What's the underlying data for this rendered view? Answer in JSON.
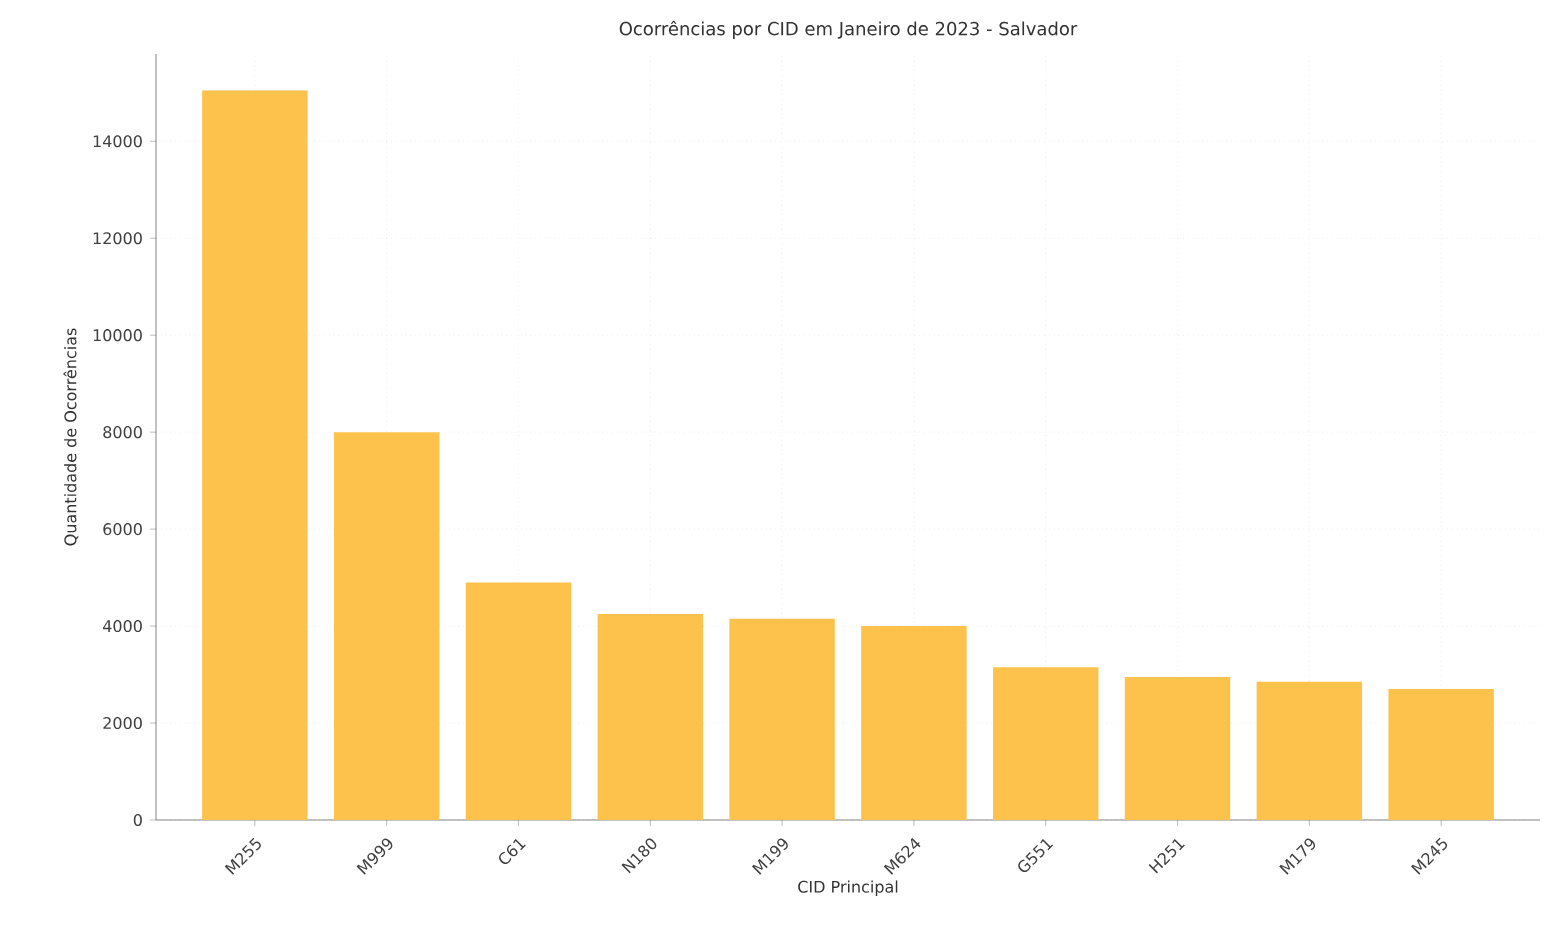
{
  "chart_data": {
    "type": "bar",
    "title": "Ocorrências por CID em Janeiro de 2023 - Salvador",
    "xlabel": "CID Principal",
    "ylabel": "Quantidade de Ocorrências",
    "categories": [
      "M255",
      "M999",
      "C61",
      "N180",
      "M199",
      "M624",
      "G551",
      "H251",
      "M179",
      "M245"
    ],
    "values": [
      15050,
      8000,
      4900,
      4250,
      4150,
      4000,
      3150,
      2950,
      2850,
      2700
    ],
    "color": "#fcc24c",
    "ylim": [
      0,
      15800
    ],
    "yticks": [
      0,
      2000,
      4000,
      6000,
      8000,
      10000,
      12000,
      14000
    ],
    "grid": true
  }
}
